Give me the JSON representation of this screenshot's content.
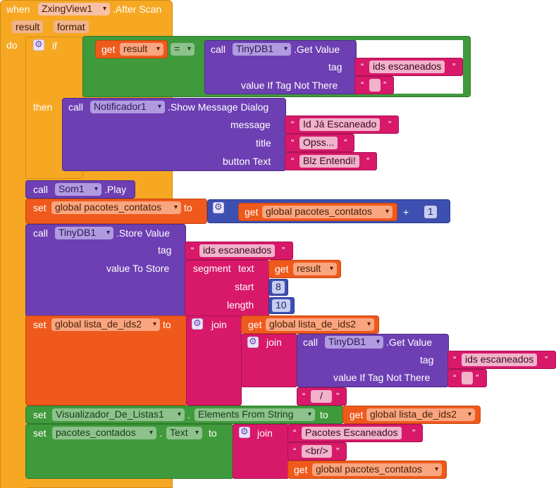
{
  "event": {
    "when": "when",
    "component": "ZxingView1",
    "event": ".After Scan",
    "params": [
      "result",
      "format"
    ],
    "do": "do"
  },
  "if_block": {
    "if_label": "if",
    "then_label": "then",
    "get_label": "get",
    "var": "result",
    "op": "=",
    "call": "call",
    "tinydb": "TinyDB1",
    "get_value": ".Get Value",
    "tag_label": "tag",
    "tag_value": "ids escaneados",
    "value_if_label": "value If Tag Not There",
    "empty_string": ""
  },
  "notifier": {
    "call": "call",
    "component": "Notificador1",
    "method": ".Show Message Dialog",
    "message_label": "message",
    "message": "Id Já Escaneado",
    "title_label": "title",
    "title": "Opss...",
    "button_label": "button Text",
    "button": "Blz Entendi!"
  },
  "play": {
    "call": "call",
    "component": "Som1",
    "method": ".Play"
  },
  "set_pacotes": {
    "set": "set",
    "var": "global pacotes_contatos",
    "to": "to",
    "get": "get",
    "get_var": "global pacotes_contatos",
    "plus": "+",
    "number": "1"
  },
  "store": {
    "call": "call",
    "component": "TinyDB1",
    "method": ".Store Value",
    "tag_label": "tag",
    "tag_value": "ids escaneados",
    "value_label": "value To Store",
    "segment": "segment",
    "text_label": "text",
    "get": "get",
    "get_var": "result",
    "start_label": "start",
    "start": "8",
    "length_label": "length",
    "length": "10"
  },
  "set_lista": {
    "set": "set",
    "var": "global lista_de_ids2",
    "to": "to",
    "join": "join",
    "get": "get",
    "get_var": "global lista_de_ids2",
    "inner_join": "join",
    "call": "call",
    "component": "TinyDB1",
    "method": ".Get Value",
    "tag_label": "tag",
    "tag_value": "ids escaneados",
    "value_if_label": "value If Tag Not There",
    "empty_string": "",
    "separator": "/"
  },
  "set_visualizador": {
    "set": "set",
    "component": "Visualizador_De_Listas1",
    "dot": ".",
    "property": "Elements From String",
    "to": "to",
    "get": "get",
    "get_var": "global lista_de_ids2"
  },
  "set_text": {
    "set": "set",
    "component": "pacotes_contados",
    "dot": ".",
    "property": "Text",
    "to": "to",
    "join": "join",
    "str1": "Pacotes Escaneados",
    "str2": "<br/>",
    "get": "get",
    "get_var": "global pacotes_contatos"
  }
}
